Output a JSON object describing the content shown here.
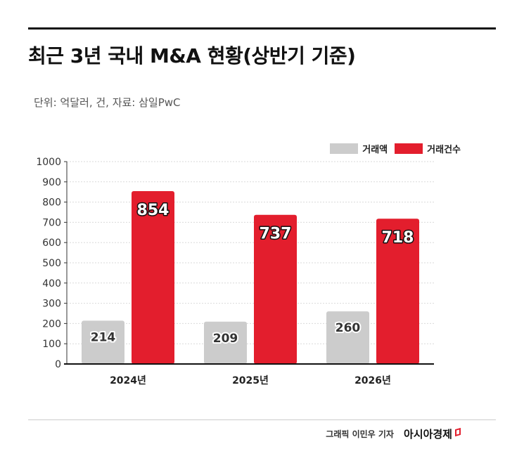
{
  "header": {
    "title": "최근 3년 국내 M&A 현황(상반기 기준)",
    "unit_note": "단위: 억달러, 건, 자료: 삼일PwC"
  },
  "legend": [
    {
      "label": "거래액",
      "color": "#cccccc"
    },
    {
      "label": "거래건수",
      "color": "#e31e2d"
    }
  ],
  "footer": {
    "credit": "그래픽  이민우 기자",
    "brand": "아시아경제"
  },
  "chart_data": {
    "type": "bar",
    "categories": [
      "2024년",
      "2025년",
      "2026년"
    ],
    "series": [
      {
        "name": "거래액",
        "values": [
          214,
          209,
          260
        ],
        "color": "#cccccc"
      },
      {
        "name": "거래건수",
        "values": [
          854,
          737,
          718
        ],
        "color": "#e31e2d"
      }
    ],
    "ylim": [
      0,
      1000
    ],
    "yticks": [
      "0",
      "100",
      "200",
      "300",
      "400",
      "500",
      "600",
      "700",
      "800",
      "900",
      "1000"
    ],
    "grid": true,
    "legend_position": "top-right",
    "data_labels": true
  }
}
